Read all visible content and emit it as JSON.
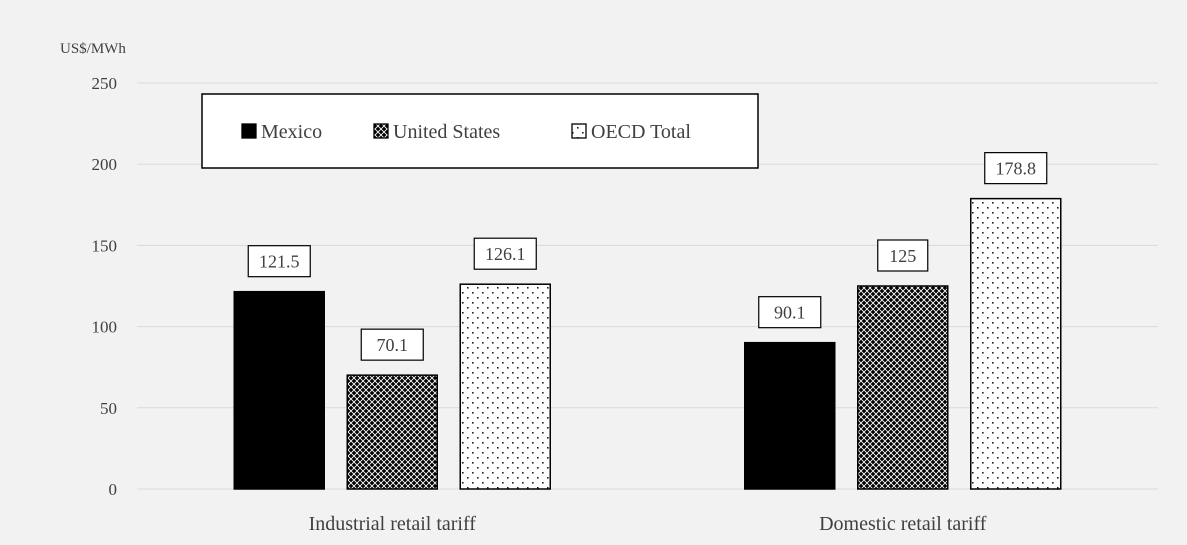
{
  "chart_data": {
    "type": "bar",
    "ylabel": "US$/MWh",
    "ylim": [
      0,
      250
    ],
    "yticks": [
      0,
      50,
      100,
      150,
      200,
      250
    ],
    "grid": true,
    "legend_position": "top-left",
    "categories": [
      "Industrial retail tariff",
      "Domestic retail tariff"
    ],
    "series": [
      {
        "name": "Mexico",
        "values": [
          121.5,
          90.1
        ],
        "labels": [
          "121.5",
          "90.1"
        ],
        "pattern": "solid",
        "color": "#000000"
      },
      {
        "name": "United States",
        "values": [
          70.1,
          125
        ],
        "labels": [
          "70.1",
          "125"
        ],
        "pattern": "crosshatch",
        "color": "#000000"
      },
      {
        "name": "OECD Total",
        "values": [
          126.1,
          178.8
        ],
        "labels": [
          "126.1",
          "178.8"
        ],
        "pattern": "dots",
        "color": "#ffffff"
      }
    ]
  },
  "colors": {
    "background": "#f2f2f2",
    "grid": "#d9d9d9",
    "text": "#404040",
    "bar_outline": "#000000"
  }
}
